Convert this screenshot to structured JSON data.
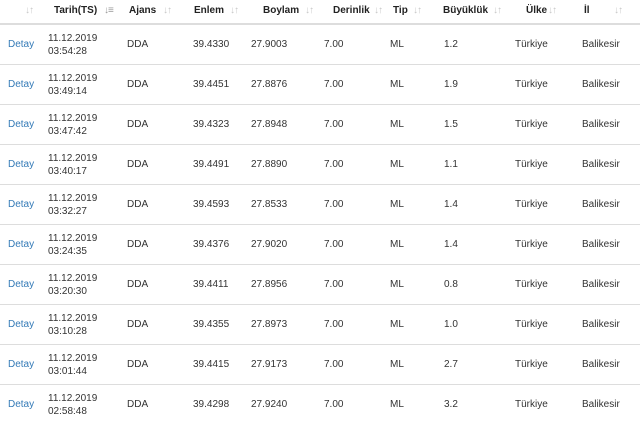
{
  "table": {
    "headers": [
      "",
      "Tarih(TS)",
      "Ajans",
      "Enlem",
      "Boylam",
      "Derinlik",
      "Tip",
      "Büyüklük",
      "Ülke",
      "İl"
    ],
    "sort_icon": "↓↑",
    "active_sort_icon": "↓≡",
    "rows": [
      {
        "link": "Detay",
        "date": "11.12.2019",
        "time": "03:54:28",
        "agency": "DDA",
        "lat": "39.4330",
        "lon": "27.9003",
        "depth": "7.00",
        "type": "ML",
        "magnitude": "1.2",
        "country": "Türkiye",
        "province": "Balikesir"
      },
      {
        "link": "Detay",
        "date": "11.12.2019",
        "time": "03:49:14",
        "agency": "DDA",
        "lat": "39.4451",
        "lon": "27.8876",
        "depth": "7.00",
        "type": "ML",
        "magnitude": "1.9",
        "country": "Türkiye",
        "province": "Balikesir"
      },
      {
        "link": "Detay",
        "date": "11.12.2019",
        "time": "03:47:42",
        "agency": "DDA",
        "lat": "39.4323",
        "lon": "27.8948",
        "depth": "7.00",
        "type": "ML",
        "magnitude": "1.5",
        "country": "Türkiye",
        "province": "Balikesir"
      },
      {
        "link": "Detay",
        "date": "11.12.2019",
        "time": "03:40:17",
        "agency": "DDA",
        "lat": "39.4491",
        "lon": "27.8890",
        "depth": "7.00",
        "type": "ML",
        "magnitude": "1.1",
        "country": "Türkiye",
        "province": "Balikesir"
      },
      {
        "link": "Detay",
        "date": "11.12.2019",
        "time": "03:32:27",
        "agency": "DDA",
        "lat": "39.4593",
        "lon": "27.8533",
        "depth": "7.00",
        "type": "ML",
        "magnitude": "1.4",
        "country": "Türkiye",
        "province": "Balikesir"
      },
      {
        "link": "Detay",
        "date": "11.12.2019",
        "time": "03:24:35",
        "agency": "DDA",
        "lat": "39.4376",
        "lon": "27.9020",
        "depth": "7.00",
        "type": "ML",
        "magnitude": "1.4",
        "country": "Türkiye",
        "province": "Balikesir"
      },
      {
        "link": "Detay",
        "date": "11.12.2019",
        "time": "03:20:30",
        "agency": "DDA",
        "lat": "39.4411",
        "lon": "27.8956",
        "depth": "7.00",
        "type": "ML",
        "magnitude": "0.8",
        "country": "Türkiye",
        "province": "Balikesir"
      },
      {
        "link": "Detay",
        "date": "11.12.2019",
        "time": "03:10:28",
        "agency": "DDA",
        "lat": "39.4355",
        "lon": "27.8973",
        "depth": "7.00",
        "type": "ML",
        "magnitude": "1.0",
        "country": "Türkiye",
        "province": "Balikesir"
      },
      {
        "link": "Detay",
        "date": "11.12.2019",
        "time": "03:01:44",
        "agency": "DDA",
        "lat": "39.4415",
        "lon": "27.9173",
        "depth": "7.00",
        "type": "ML",
        "magnitude": "2.7",
        "country": "Türkiye",
        "province": "Balikesir"
      },
      {
        "link": "Detay",
        "date": "11.12.2019",
        "time": "02:58:48",
        "agency": "DDA",
        "lat": "39.4298",
        "lon": "27.9240",
        "depth": "7.00",
        "type": "ML",
        "magnitude": "3.2",
        "country": "Türkiye",
        "province": "Balikesir"
      }
    ]
  }
}
